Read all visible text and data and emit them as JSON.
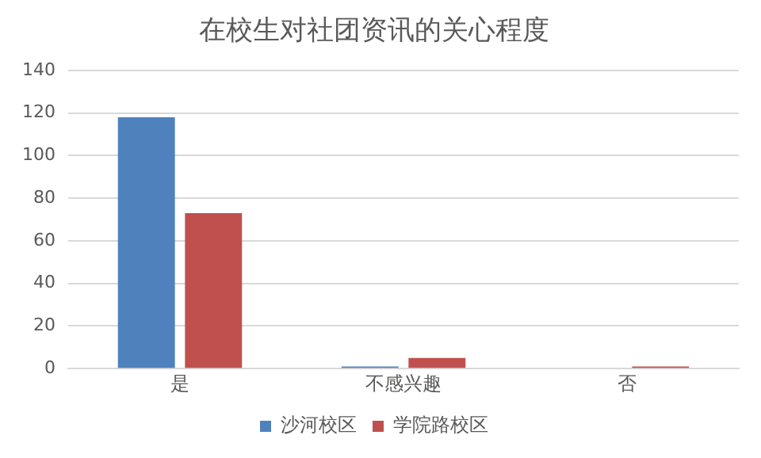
{
  "chart_data": {
    "type": "bar",
    "title": "在校生对社团资讯的关心程度",
    "categories": [
      "是",
      "不感兴趣",
      "否"
    ],
    "series": [
      {
        "name": "沙河校区",
        "color": "#4f81bd",
        "values": [
          118,
          1,
          0
        ]
      },
      {
        "name": "学院路校区",
        "color": "#c0504d",
        "values": [
          73,
          5,
          1
        ]
      }
    ],
    "ylim": [
      0,
      140
    ],
    "yticks": [
      0,
      20,
      40,
      60,
      80,
      100,
      120,
      140
    ],
    "grid": "y",
    "legend": "bottom"
  }
}
